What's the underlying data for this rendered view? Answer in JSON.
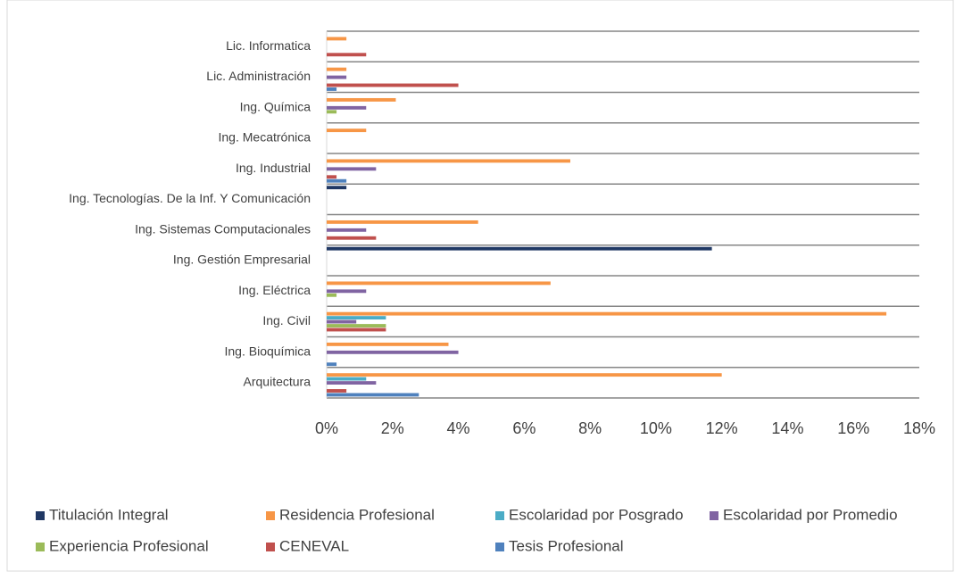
{
  "chart_data": {
    "type": "hbar",
    "categories": [
      "Lic. Informatica",
      "Lic. Administración",
      "Ing. Química",
      "Ing. Mecatrónica",
      "Ing. Industrial",
      "Ing. Tecnologías. De la Inf. Y Comunicación",
      "Ing. Sistemas Computacionales",
      "Ing. Gestión Empresarial",
      "Ing. Eléctrica",
      "Ing. Civil",
      "Ing. Bioquímica",
      "Arquitectura"
    ],
    "series": [
      {
        "name": "Titulación Integral",
        "color": "#203864",
        "values": [
          0,
          0,
          0,
          0,
          0,
          0.6,
          0,
          11.7,
          0,
          0,
          0,
          0
        ]
      },
      {
        "name": "Residencia Profesional",
        "color": "#f79646",
        "values": [
          0.6,
          0.6,
          2.1,
          1.2,
          7.4,
          0,
          4.6,
          0,
          6.8,
          17.0,
          3.7,
          12.0
        ]
      },
      {
        "name": "Escolaridad por Posgrado",
        "color": "#4bacc6",
        "values": [
          0,
          0,
          0,
          0,
          0,
          0,
          0,
          0,
          0,
          1.8,
          0,
          1.2
        ]
      },
      {
        "name": "Escolaridad por Promedio",
        "color": "#8064a2",
        "values": [
          0,
          0.6,
          1.2,
          0,
          1.5,
          0,
          1.2,
          0,
          1.2,
          0.9,
          4.0,
          1.5
        ]
      },
      {
        "name": "Experiencia Profesional",
        "color": "#9bbb59",
        "values": [
          0,
          0,
          0.3,
          0,
          0,
          0,
          0,
          0,
          0.3,
          1.8,
          0,
          0
        ]
      },
      {
        "name": "CENEVAL",
        "color": "#c0504d",
        "values": [
          1.2,
          4.0,
          0,
          0,
          0.3,
          0,
          1.5,
          0,
          0,
          1.8,
          0,
          0.6
        ]
      },
      {
        "name": "Tesis Profesional",
        "color": "#4f81bd",
        "values": [
          0,
          0.3,
          0,
          0,
          0.6,
          0,
          0,
          0,
          0,
          0,
          0.3,
          2.8
        ]
      }
    ],
    "xlim": [
      0,
      18
    ],
    "xticks": [
      {
        "value": 0,
        "label": "0%"
      },
      {
        "value": 2,
        "label": "2%"
      },
      {
        "value": 4,
        "label": "4%"
      },
      {
        "value": 6,
        "label": "6%"
      },
      {
        "value": 8,
        "label": "8%"
      },
      {
        "value": 10,
        "label": "10%"
      },
      {
        "value": 12,
        "label": "12%"
      },
      {
        "value": 14,
        "label": "14%"
      },
      {
        "value": 16,
        "label": "16%"
      },
      {
        "value": 18,
        "label": "18%"
      }
    ],
    "grid": true,
    "legend": "bottom"
  }
}
